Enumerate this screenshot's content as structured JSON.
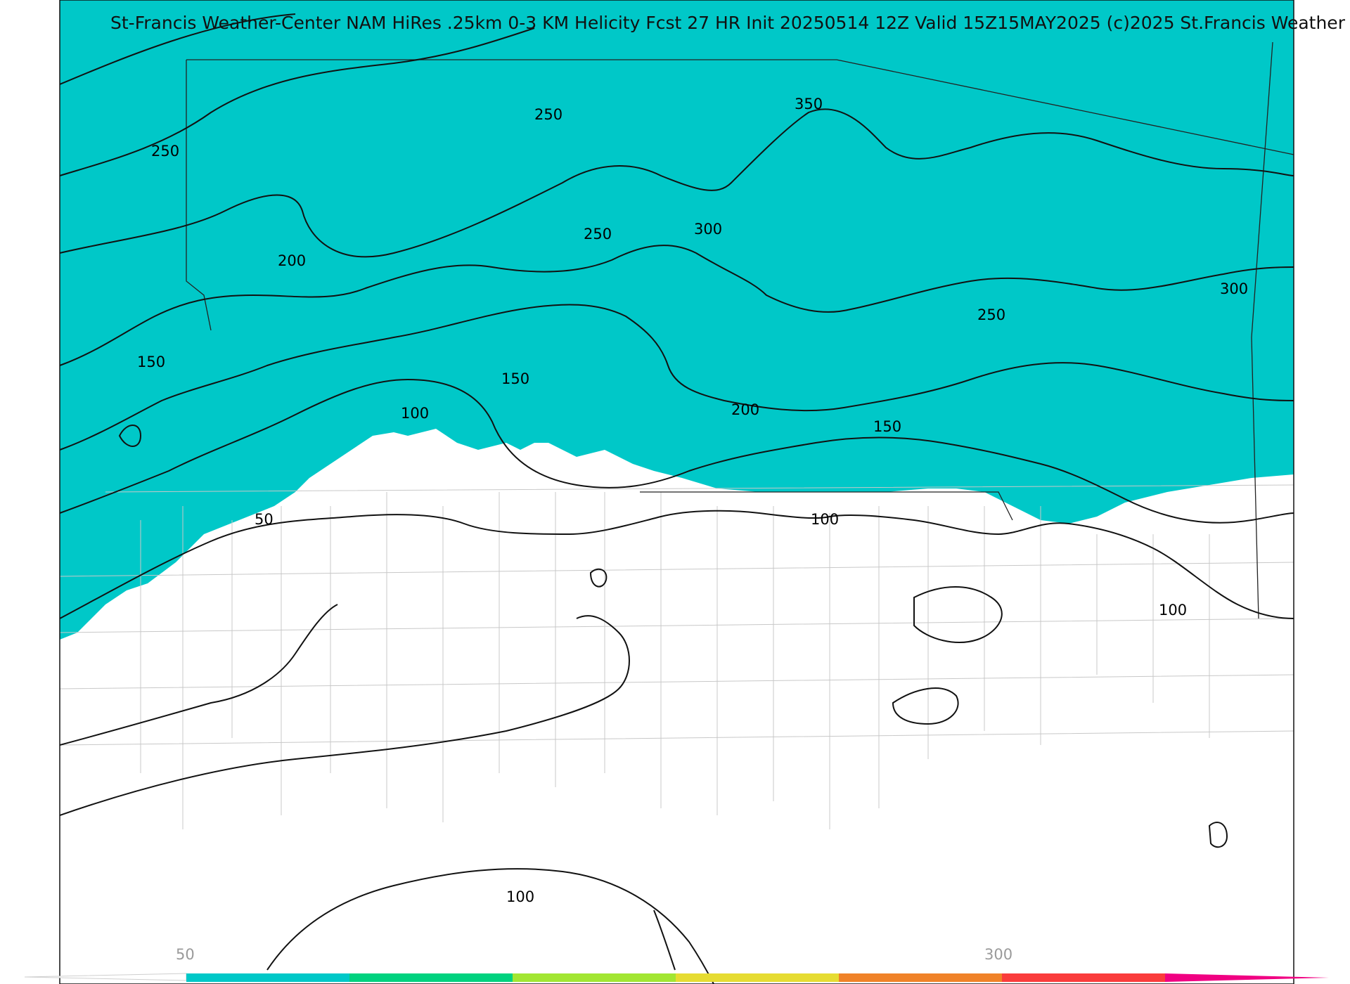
{
  "title": "St-Francis Weather-Center NAM HiRes .25km 0-3 KM Helicity Fcst 27 HR Init 20250514 12Z  Valid 15Z15MAY2025    (c)2025 St.Francis Weather",
  "colors": {
    "band_cyan": "#00c8c8",
    "band_teal": "#00d27f",
    "band_lime": "#a2e632",
    "band_yellow": "#e6dc32",
    "band_orange": "#f08228",
    "band_red": "#fa3c3c",
    "band_magenta": "#f00082",
    "background": "#ffffff"
  },
  "contour_labels": [
    "350",
    "250",
    "250",
    "250",
    "300",
    "200",
    "300",
    "150",
    "150",
    "250",
    "100",
    "200",
    "150",
    "50",
    "100",
    "100",
    "100"
  ],
  "colorbar": {
    "tick_labels": [
      "50",
      "300"
    ],
    "colors": [
      "#00c8c8",
      "#00d27f",
      "#a2e632",
      "#e6dc32",
      "#f08228",
      "#fa3c3c",
      "#f00082"
    ]
  }
}
